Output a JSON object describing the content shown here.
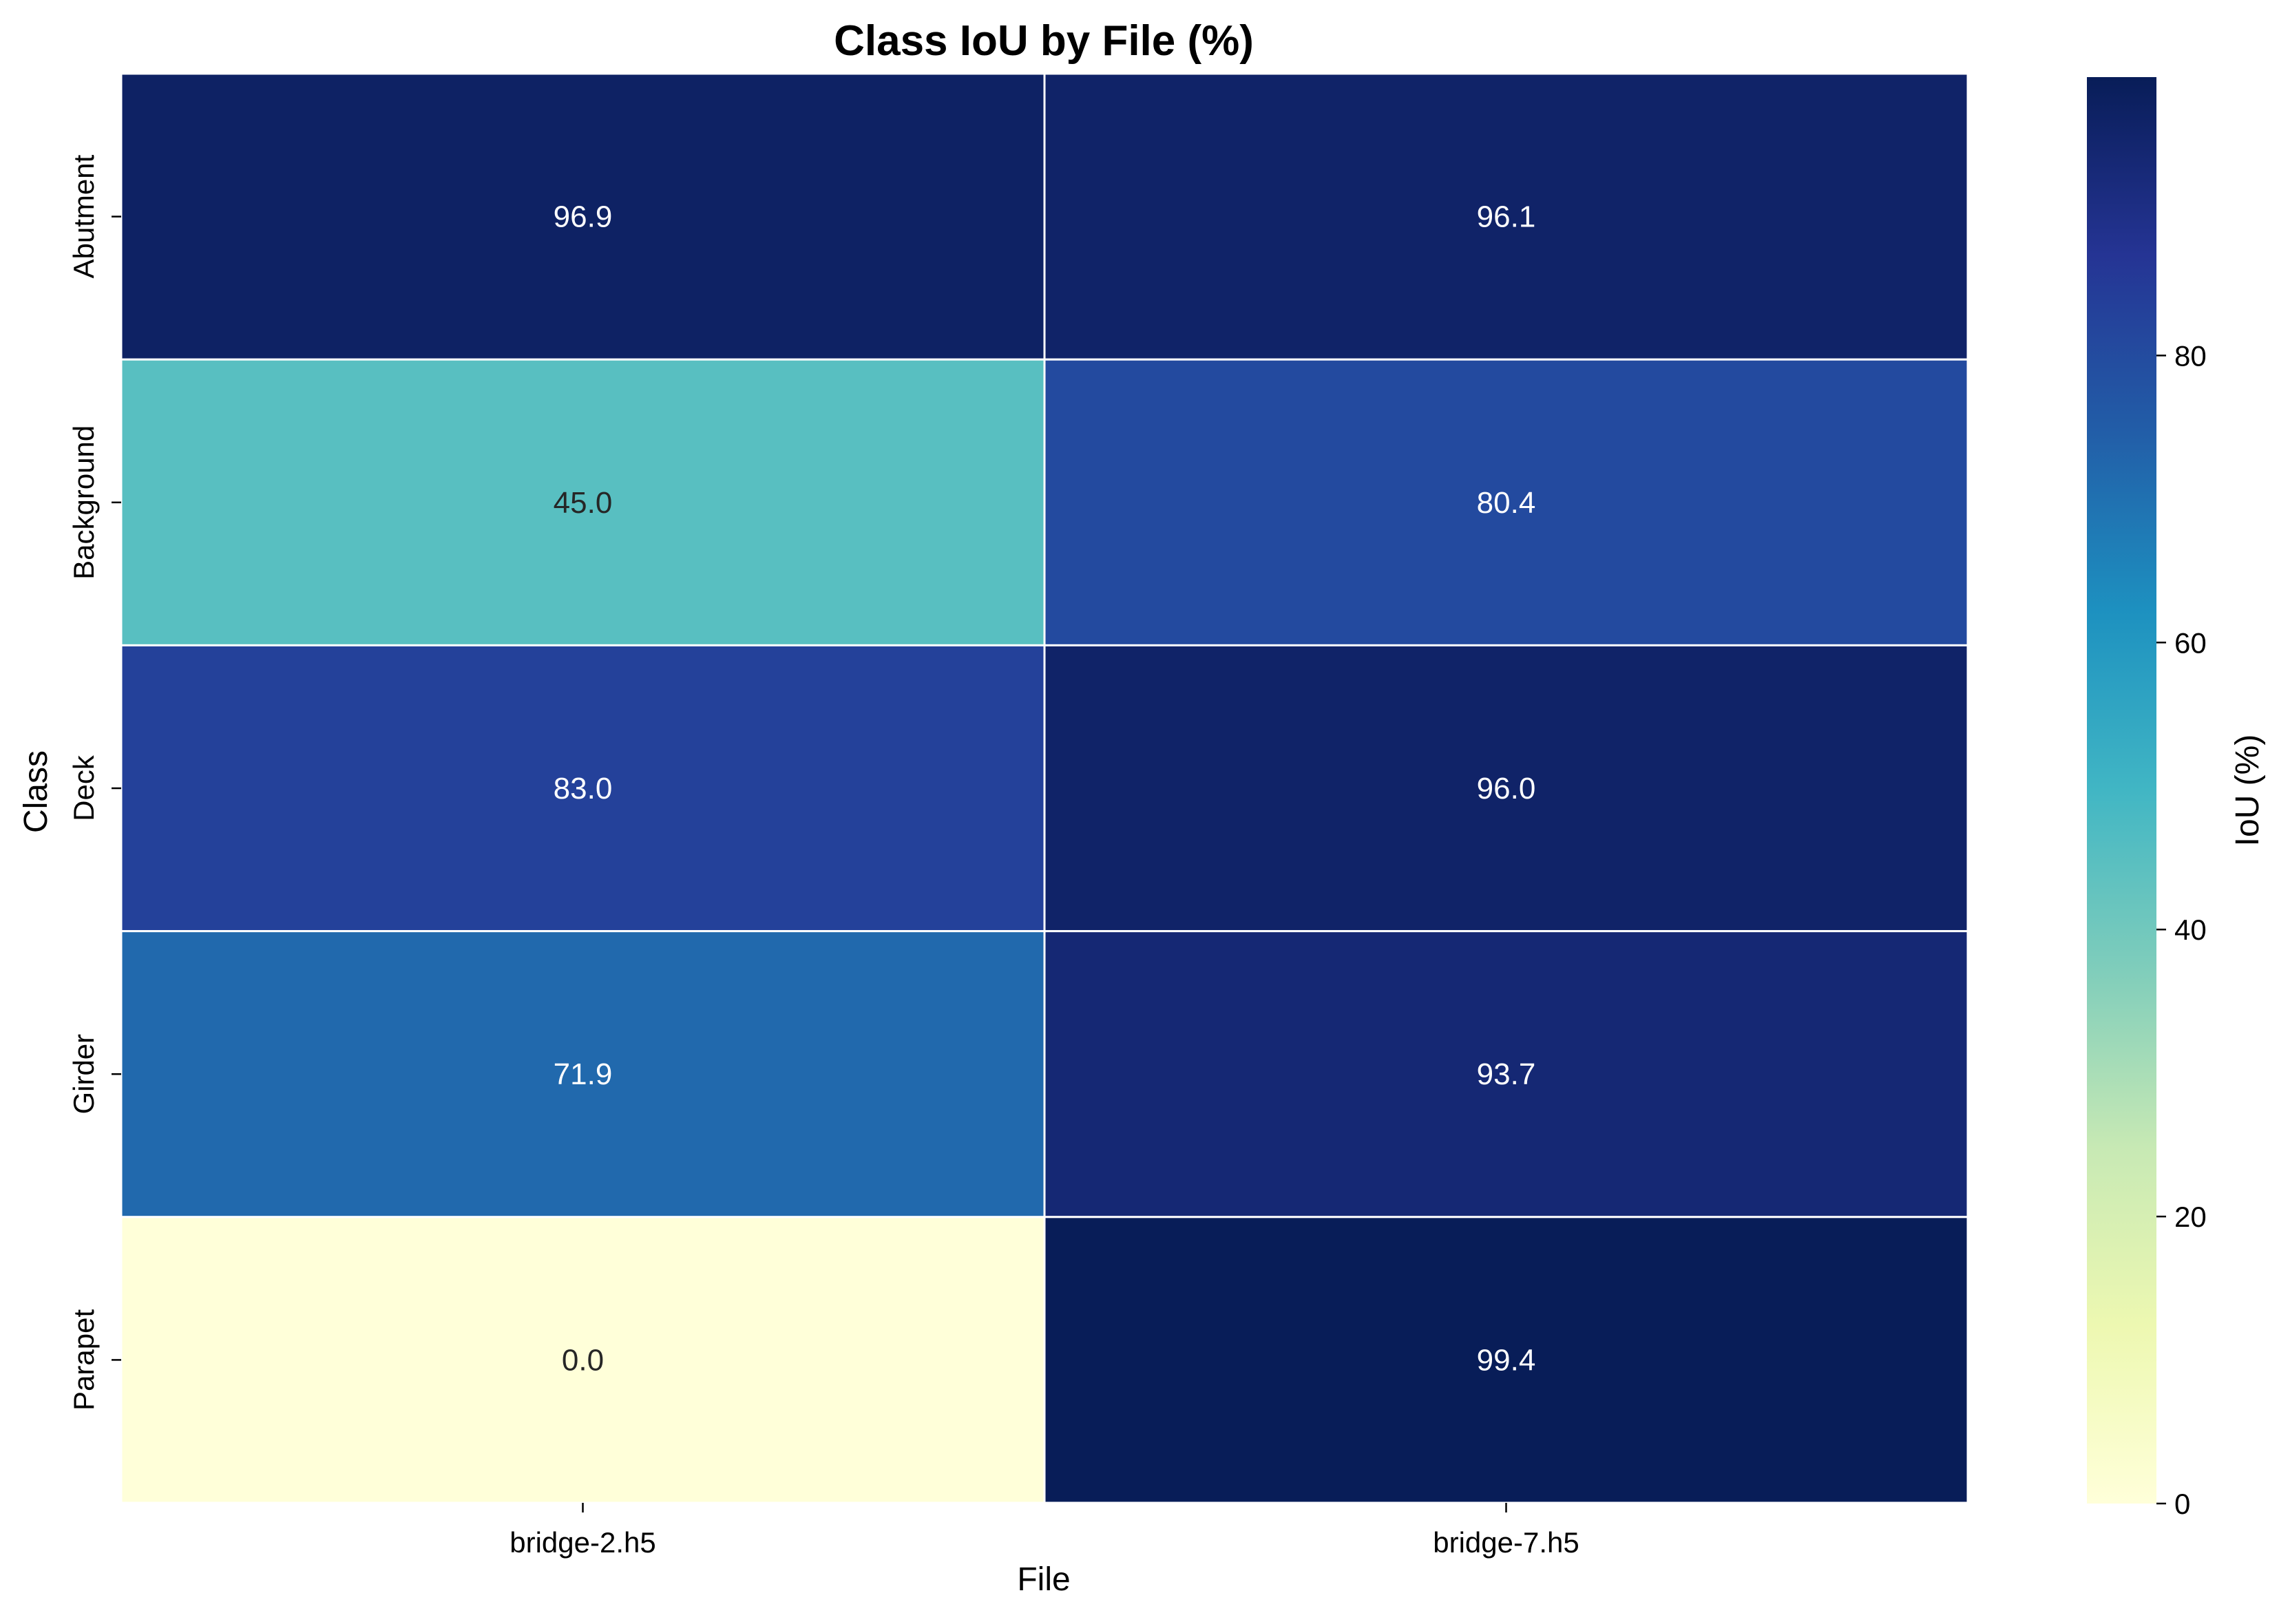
{
  "chart_data": {
    "type": "heatmap",
    "title": "Class IoU by File (%)",
    "xlabel": "File",
    "ylabel": "Class",
    "x_categories": [
      "bridge-2.h5",
      "bridge-7.h5"
    ],
    "y_categories": [
      "Abutment",
      "Background",
      "Deck",
      "Girder",
      "Parapet"
    ],
    "values": [
      [
        96.9,
        96.1
      ],
      [
        45.0,
        80.4
      ],
      [
        83.0,
        96.0
      ],
      [
        71.9,
        93.7
      ],
      [
        0.0,
        99.4
      ]
    ],
    "value_labels": [
      [
        "96.9",
        "96.1"
      ],
      [
        "45.0",
        "80.4"
      ],
      [
        "83.0",
        "96.0"
      ],
      [
        "71.9",
        "93.7"
      ],
      [
        "0.0",
        "99.4"
      ]
    ],
    "colorbar": {
      "label": "IoU (%)",
      "vmin": 0,
      "vmax": 99.4,
      "ticks": [
        0,
        20,
        40,
        60,
        80
      ],
      "tick_labels": [
        "0",
        "20",
        "40",
        "60",
        "80"
      ],
      "colormap": "YlGnBu"
    }
  }
}
